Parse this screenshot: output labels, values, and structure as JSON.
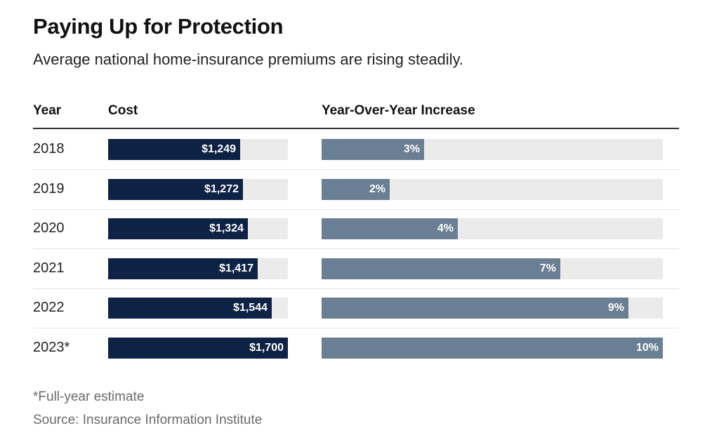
{
  "header": {
    "title": "Paying Up for Protection",
    "subtitle": "Average national home-insurance premiums are rising steadily."
  },
  "columns": {
    "year": "Year",
    "cost": "Cost",
    "yoy": "Year-Over-Year Increase"
  },
  "footer": {
    "footnote": "*Full-year estimate",
    "source": "Source: Insurance Information Institute"
  },
  "colors": {
    "cost_bar": "#0e2245",
    "yoy_bar": "#6a7f93",
    "track": "#ebebeb"
  },
  "chart_data": {
    "type": "bar",
    "orientation": "horizontal",
    "title": "Paying Up for Protection",
    "subtitle": "Average national home-insurance premiums are rising steadily.",
    "categories": [
      "2018",
      "2019",
      "2020",
      "2021",
      "2022",
      "2023*"
    ],
    "series": [
      {
        "name": "Cost",
        "values": [
          1249,
          1272,
          1324,
          1417,
          1544,
          1700
        ],
        "labels": [
          "$1,249",
          "$1,272",
          "$1,324",
          "$1,417",
          "$1,544",
          "$1,700"
        ],
        "xlim": [
          0,
          1700
        ]
      },
      {
        "name": "Year-Over-Year Increase",
        "values": [
          3,
          2,
          4,
          7,
          9,
          10
        ],
        "labels": [
          "3%",
          "2%",
          "4%",
          "7%",
          "9%",
          "10%"
        ],
        "xlim": [
          0,
          10
        ]
      }
    ],
    "grid": false,
    "legend": "none"
  }
}
